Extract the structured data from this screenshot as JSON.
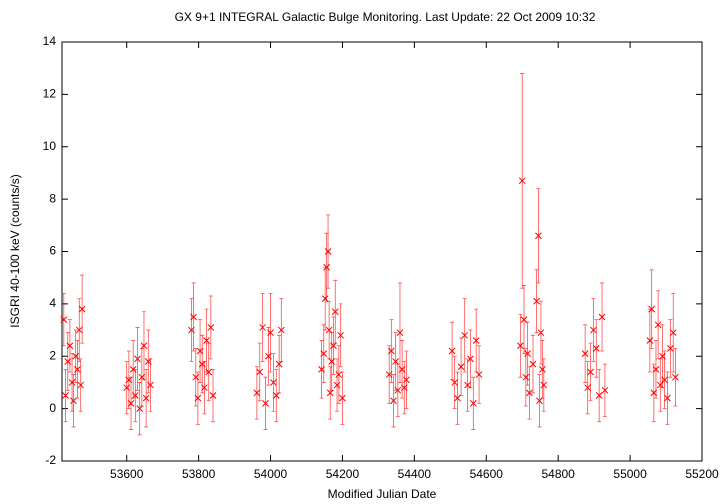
{
  "chart_data": {
    "type": "scatter",
    "title": "GX 9+1   INTEGRAL Galactic Bulge Monitoring.  Last Update: 22 Oct 2009 10:32",
    "x_label": "Modified Julian Date",
    "y_label": "ISGRI 40-100 keV (counts/s)",
    "color": "#ff0000",
    "xlim": [
      53420,
      55200
    ],
    "xticks": [
      53600,
      53800,
      54000,
      54200,
      54400,
      54600,
      54800,
      55000,
      55200
    ],
    "ylim": [
      -2,
      14
    ],
    "yticks": [
      -2,
      0,
      2,
      4,
      6,
      8,
      10,
      12,
      14
    ],
    "x": [
      53425,
      53430,
      53436,
      53442,
      53448,
      53452,
      53458,
      53463,
      53468,
      53472,
      53476,
      53600,
      53606,
      53612,
      53618,
      53624,
      53630,
      53636,
      53642,
      53648,
      53654,
      53660,
      53666,
      53780,
      53786,
      53792,
      53798,
      53804,
      53810,
      53816,
      53822,
      53828,
      53834,
      53840,
      53962,
      53970,
      53978,
      53986,
      53994,
      54000,
      54008,
      54016,
      54024,
      54030,
      54142,
      54148,
      54152,
      54156,
      54160,
      54163,
      54166,
      54170,
      54175,
      54180,
      54185,
      54190,
      54195,
      54200,
      54330,
      54336,
      54342,
      54348,
      54354,
      54360,
      54366,
      54372,
      54378,
      54505,
      54512,
      54520,
      54530,
      54540,
      54548,
      54556,
      54564,
      54572,
      54580,
      54695,
      54700,
      54705,
      54710,
      54715,
      54720,
      54730,
      54740,
      54745,
      54748,
      54752,
      54756,
      54760,
      54875,
      54882,
      54890,
      54898,
      54906,
      54914,
      54922,
      54930,
      55055,
      55060,
      55066,
      55072,
      55078,
      55084,
      55090,
      55096,
      55104,
      55112,
      55120,
      55126
    ],
    "values": [
      3.4,
      0.5,
      1.8,
      2.4,
      1.0,
      0.3,
      2.0,
      1.5,
      3.0,
      0.9,
      3.8,
      0.8,
      1.1,
      0.2,
      1.5,
      0.5,
      1.9,
      0.0,
      1.2,
      2.4,
      0.4,
      1.8,
      0.9,
      3.0,
      3.5,
      1.2,
      0.4,
      2.2,
      1.7,
      0.8,
      2.6,
      1.4,
      3.1,
      0.5,
      0.6,
      1.4,
      3.1,
      0.2,
      2.0,
      2.9,
      1.0,
      0.5,
      1.7,
      3.0,
      1.5,
      2.1,
      4.2,
      5.4,
      6.0,
      3.0,
      0.6,
      1.8,
      2.4,
      3.7,
      0.9,
      1.3,
      2.8,
      0.4,
      1.3,
      2.2,
      0.3,
      1.8,
      0.7,
      2.9,
      1.5,
      0.8,
      1.1,
      2.2,
      1.0,
      0.4,
      1.6,
      2.8,
      0.9,
      1.9,
      0.2,
      2.6,
      1.3,
      2.4,
      8.7,
      3.4,
      1.2,
      2.1,
      0.6,
      1.7,
      4.1,
      6.6,
      0.3,
      2.9,
      1.5,
      0.9,
      2.1,
      0.8,
      1.4,
      3.0,
      2.3,
      0.5,
      3.5,
      0.7,
      2.6,
      3.8,
      0.6,
      1.5,
      3.2,
      0.9,
      2.0,
      1.1,
      0.4,
      2.3,
      2.9,
      1.2
    ],
    "errors": [
      1.0,
      1.0,
      1.1,
      1.0,
      1.1,
      1.0,
      1.0,
      1.1,
      1.2,
      1.0,
      1.3,
      1.0,
      1.1,
      1.0,
      1.1,
      1.0,
      1.2,
      1.0,
      1.1,
      1.3,
      1.1,
      1.2,
      1.0,
      1.2,
      1.3,
      1.1,
      1.0,
      1.2,
      1.1,
      1.0,
      1.2,
      1.1,
      1.2,
      1.0,
      1.0,
      1.1,
      1.3,
      1.0,
      1.1,
      1.5,
      1.1,
      1.0,
      1.1,
      1.2,
      1.1,
      1.1,
      1.2,
      1.3,
      1.4,
      1.1,
      1.0,
      1.1,
      1.1,
      1.2,
      1.0,
      1.1,
      1.2,
      1.0,
      1.1,
      1.2,
      1.0,
      1.1,
      1.0,
      1.9,
      1.1,
      1.0,
      1.1,
      1.1,
      1.0,
      1.0,
      1.1,
      1.4,
      1.0,
      1.1,
      1.0,
      1.2,
      1.1,
      1.2,
      4.1,
      1.3,
      1.1,
      1.2,
      1.0,
      1.1,
      1.2,
      1.8,
      1.0,
      1.2,
      1.1,
      1.0,
      1.1,
      1.0,
      1.1,
      1.2,
      1.1,
      1.0,
      1.3,
      1.0,
      1.2,
      1.5,
      1.1,
      1.1,
      1.3,
      1.0,
      1.2,
      1.1,
      1.0,
      1.1,
      1.5,
      1.1
    ]
  }
}
